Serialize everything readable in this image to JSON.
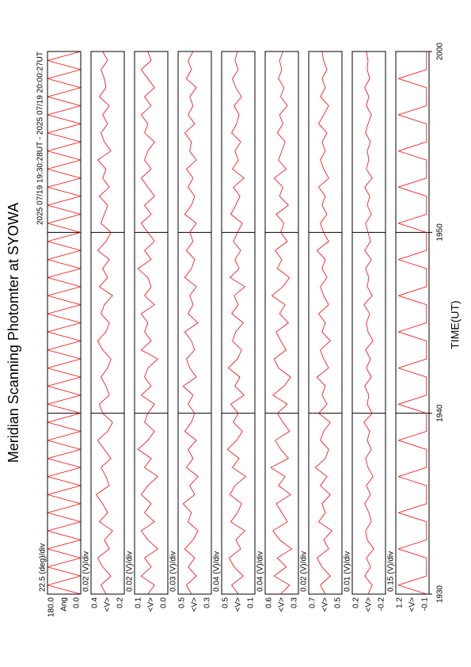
{
  "title": "Meridian Scanning Photomter at SYOWA",
  "header": "2025 07/19 19:30:28UT - 2025 07/19 20:00:27UT",
  "time_axis": {
    "label": "TIME(UT)",
    "xlim": [
      1170,
      1200
    ],
    "xticks": [
      {
        "value": 1170,
        "label": "1930"
      },
      {
        "value": 1180,
        "label": "1940"
      },
      {
        "value": 1190,
        "label": "1950"
      },
      {
        "value": 1200,
        "label": "2000"
      }
    ],
    "x": [
      1170,
      1170.5,
      1171,
      1171.5,
      1172,
      1172.5,
      1173,
      1173.5,
      1174,
      1174.5,
      1175,
      1175.5,
      1176,
      1176.5,
      1177,
      1177.5,
      1178,
      1178.5,
      1179,
      1179.5,
      1180,
      1180.5,
      1181,
      1181.5,
      1182,
      1182.5,
      1183,
      1183.5,
      1184,
      1184.5,
      1185,
      1185.5,
      1186,
      1186.5,
      1187,
      1187.5,
      1188,
      1188.5,
      1189,
      1189.5,
      1190,
      1190.5,
      1191,
      1191.5,
      1192,
      1192.5,
      1193,
      1193.5,
      1194,
      1194.5,
      1195,
      1195.5,
      1196,
      1196.5,
      1197,
      1197.5,
      1198,
      1198.5,
      1199,
      1199.5,
      1200
    ]
  },
  "chart_data": [
    {
      "type": "line",
      "label": "22.5 (deg)/div",
      "ylabel": "Ang",
      "color": "#ff0000",
      "ylim": [
        0,
        180
      ],
      "yticks": [
        {
          "value": 180,
          "label": "180.0"
        },
        {
          "value": 0,
          "label": "0.0"
        }
      ],
      "values": [
        0,
        180,
        0,
        180,
        0,
        180,
        0,
        180,
        0,
        180,
        0,
        180,
        0,
        180,
        0,
        180,
        0,
        180,
        0,
        180,
        0,
        180,
        0,
        180,
        0,
        180,
        0,
        180,
        0,
        180,
        0,
        180,
        0,
        180,
        0,
        180,
        0,
        180,
        0,
        180,
        0,
        180,
        0,
        180,
        0,
        180,
        0,
        180,
        0,
        180,
        0,
        180,
        0,
        180,
        0,
        180,
        0,
        180,
        0,
        180,
        0
      ]
    },
    {
      "type": "line",
      "label": "0.02 (V)/div",
      "ylabel": "<V>",
      "color": "#ff0000",
      "ylim": [
        0.2,
        0.4
      ],
      "yticks": [
        0.4,
        0.2
      ],
      "values": [
        0.31,
        0.34,
        0.28,
        0.33,
        0.36,
        0.29,
        0.32,
        0.27,
        0.35,
        0.3,
        0.33,
        0.37,
        0.29,
        0.31,
        0.34,
        0.28,
        0.32,
        0.36,
        0.3,
        0.27,
        0.33,
        0.35,
        0.29,
        0.31,
        0.34,
        0.3,
        0.28,
        0.33,
        0.36,
        0.31,
        0.29,
        0.34,
        0.32,
        0.27,
        0.35,
        0.3,
        0.33,
        0.29,
        0.36,
        0.31,
        0.28,
        0.34,
        0.32,
        0.3,
        0.35,
        0.29,
        0.33,
        0.31,
        0.36,
        0.28,
        0.32,
        0.34,
        0.3,
        0.33,
        0.29,
        0.35,
        0.31,
        0.32,
        0.34,
        0.3,
        0.33
      ]
    },
    {
      "type": "line",
      "label": "0.02 (V)/div",
      "ylabel": "<V>",
      "color": "#ff0000",
      "ylim": [
        0,
        0.1
      ],
      "yticks": [
        0.1,
        {
          "value": 0,
          "label": "0.0"
        }
      ],
      "values": [
        0.06,
        0.04,
        0.08,
        0.05,
        0.07,
        0.03,
        0.06,
        0.08,
        0.04,
        0.07,
        0.05,
        0.08,
        0.06,
        0.03,
        0.07,
        0.05,
        0.09,
        0.06,
        0.04,
        0.07,
        0.06,
        0.04,
        0.08,
        0.05,
        0.07,
        0.06,
        0.03,
        0.08,
        0.05,
        0.07,
        0.06,
        0.08,
        0.04,
        0.07,
        0.05,
        0.06,
        0.09,
        0.05,
        0.07,
        0.04,
        0.06,
        0.08,
        0.05,
        0.07,
        0.04,
        0.06,
        0.08,
        0.05,
        0.07,
        0.06,
        0.04,
        0.07,
        0.06,
        0.08,
        0.05,
        0.07,
        0.04,
        0.06,
        0.08,
        0.05,
        0.06
      ]
    },
    {
      "type": "line",
      "label": "0.03 (V)/div",
      "ylabel": "<V>",
      "color": "#ff0000",
      "ylim": [
        0.3,
        0.5
      ],
      "yticks": [
        0.5,
        0.3
      ],
      "values": [
        0.42,
        0.45,
        0.39,
        0.44,
        0.4,
        0.46,
        0.41,
        0.38,
        0.44,
        0.42,
        0.47,
        0.4,
        0.43,
        0.38,
        0.45,
        0.41,
        0.44,
        0.39,
        0.46,
        0.42,
        0.4,
        0.44,
        0.41,
        0.47,
        0.39,
        0.43,
        0.45,
        0.4,
        0.42,
        0.46,
        0.38,
        0.44,
        0.41,
        0.43,
        0.39,
        0.46,
        0.42,
        0.4,
        0.45,
        0.41,
        0.43,
        0.39,
        0.46,
        0.42,
        0.4,
        0.44,
        0.41,
        0.45,
        0.39,
        0.43,
        0.42,
        0.46,
        0.4,
        0.44,
        0.41,
        0.43,
        0.39,
        0.45,
        0.42,
        0.44,
        0.41
      ]
    },
    {
      "type": "line",
      "label": "0.04 (V)/div",
      "ylabel": "<V>",
      "color": "#ff0000",
      "ylim": [
        0.1,
        0.5
      ],
      "yticks": [
        0.5,
        0.1
      ],
      "values": [
        0.3,
        0.38,
        0.24,
        0.35,
        0.41,
        0.27,
        0.33,
        0.22,
        0.39,
        0.31,
        0.26,
        0.4,
        0.34,
        0.21,
        0.37,
        0.29,
        0.43,
        0.32,
        0.25,
        0.36,
        0.3,
        0.39,
        0.23,
        0.34,
        0.28,
        0.42,
        0.31,
        0.26,
        0.37,
        0.33,
        0.24,
        0.38,
        0.3,
        0.35,
        0.22,
        0.4,
        0.29,
        0.34,
        0.27,
        0.36,
        0.31,
        0.25,
        0.39,
        0.33,
        0.28,
        0.36,
        0.23,
        0.37,
        0.3,
        0.34,
        0.27,
        0.38,
        0.32,
        0.29,
        0.35,
        0.26,
        0.33,
        0.37,
        0.3,
        0.34,
        0.31
      ]
    },
    {
      "type": "line",
      "label": "0.04 (V)/div",
      "ylabel": "<V>",
      "color": "#ff0000",
      "ylim": [
        0.3,
        0.6
      ],
      "yticks": [
        0.6,
        0.3
      ],
      "values": [
        0.46,
        0.38,
        0.52,
        0.41,
        0.49,
        0.36,
        0.47,
        0.53,
        0.4,
        0.45,
        0.5,
        0.37,
        0.48,
        0.42,
        0.55,
        0.39,
        0.46,
        0.51,
        0.38,
        0.44,
        0.49,
        0.4,
        0.53,
        0.43,
        0.37,
        0.48,
        0.52,
        0.41,
        0.46,
        0.5,
        0.39,
        0.47,
        0.42,
        0.54,
        0.44,
        0.38,
        0.49,
        0.45,
        0.51,
        0.4,
        0.46,
        0.43,
        0.5,
        0.39,
        0.47,
        0.44,
        0.52,
        0.41,
        0.48,
        0.45,
        0.42,
        0.49,
        0.44,
        0.47,
        0.4,
        0.46,
        0.43,
        0.48,
        0.45,
        0.47,
        0.44
      ]
    },
    {
      "type": "line",
      "label": "0.02 (V)/div",
      "ylabel": "<V>",
      "color": "#ff0000",
      "ylim": [
        0.5,
        0.7
      ],
      "yticks": [
        0.7,
        0.5
      ],
      "values": [
        0.6,
        0.63,
        0.57,
        0.62,
        0.65,
        0.58,
        0.61,
        0.56,
        0.64,
        0.6,
        0.62,
        0.57,
        0.63,
        0.59,
        0.66,
        0.6,
        0.58,
        0.63,
        0.61,
        0.57,
        0.64,
        0.59,
        0.62,
        0.6,
        0.65,
        0.58,
        0.61,
        0.63,
        0.57,
        0.62,
        0.6,
        0.64,
        0.58,
        0.61,
        0.63,
        0.59,
        0.62,
        0.6,
        0.65,
        0.58,
        0.61,
        0.63,
        0.59,
        0.62,
        0.6,
        0.64,
        0.58,
        0.61,
        0.63,
        0.6,
        0.62,
        0.59,
        0.64,
        0.61,
        0.58,
        0.63,
        0.6,
        0.62,
        0.59,
        0.61,
        0.62
      ]
    },
    {
      "type": "line",
      "label": "0.01 (V)/div",
      "ylabel": "<V>",
      "color": "#ff0000",
      "ylim": [
        -0.2,
        0.2
      ],
      "yticks": [
        0.2,
        -0.2
      ],
      "values": [
        0.01,
        -0.04,
        0.05,
        -0.02,
        0.03,
        -0.06,
        0.02,
        0.04,
        -0.03,
        0,
        0.05,
        -0.02,
        0.03,
        -0.05,
        0.01,
        0.04,
        -0.03,
        0.02,
        -0.01,
        0.06,
        -0.04,
        0.02,
        0,
        0.05,
        -0.03,
        0.03,
        -0.02,
        0.04,
        -0.05,
        0.01,
        0.03,
        -0.01,
        0.06,
        -0.04,
        0.02,
        0,
        0.04,
        -0.03,
        0.05,
        -0.02,
        0.01,
        0.04,
        -0.03,
        0.02,
        -0.01,
        0.05,
        -0.04,
        0.03,
        0,
        0.02,
        -0.02,
        0.04,
        0.01,
        -0.03,
        0.03,
        0,
        0.05,
        -0.01,
        0.02,
        0.01,
        0.03
      ]
    },
    {
      "type": "line",
      "label": "0.15 (V)/div",
      "ylabel": "<V>",
      "color": "#ff0000",
      "ylim": [
        -0.1,
        1.2
      ],
      "yticks": [
        1.2,
        -0.1
      ],
      "values": [
        0,
        1.1,
        0,
        0,
        0,
        1.1,
        0,
        0,
        0,
        1.1,
        0,
        0,
        0,
        1.1,
        0,
        0,
        0,
        1.1,
        0,
        0,
        0,
        1.1,
        0,
        0,
        0,
        1.1,
        0,
        0,
        0,
        1.1,
        0,
        0,
        0,
        1.1,
        0,
        0,
        0,
        1.1,
        0,
        0,
        0,
        1.1,
        0,
        0,
        0,
        1.1,
        0,
        0,
        0,
        1.1,
        0,
        0,
        0,
        1.1,
        0,
        0,
        0,
        1.1,
        0,
        0,
        0
      ]
    }
  ]
}
